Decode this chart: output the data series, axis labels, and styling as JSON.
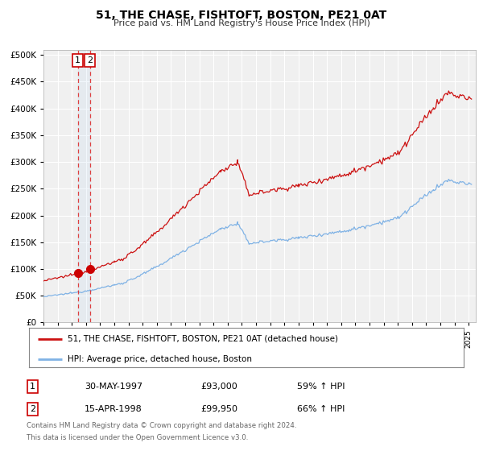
{
  "title": "51, THE CHASE, FISHTOFT, BOSTON, PE21 0AT",
  "subtitle": "Price paid vs. HM Land Registry's House Price Index (HPI)",
  "legend_line1": "51, THE CHASE, FISHTOFT, BOSTON, PE21 0AT (detached house)",
  "legend_line2": "HPI: Average price, detached house, Boston",
  "sale1_date": "30-MAY-1997",
  "sale1_price": "£93,000",
  "sale1_hpi": "59% ↑ HPI",
  "sale2_date": "15-APR-1998",
  "sale2_price": "£99,950",
  "sale2_hpi": "66% ↑ HPI",
  "footnote1": "Contains HM Land Registry data © Crown copyright and database right 2024.",
  "footnote2": "This data is licensed under the Open Government Licence v3.0.",
  "hpi_color": "#7fb2e5",
  "price_color": "#cc1111",
  "marker_color": "#cc0000",
  "vline_color": "#dd2222",
  "sale1_x": 1997.42,
  "sale1_y": 93000,
  "sale2_x": 1998.28,
  "sale2_y": 99950,
  "xmin": 1995.0,
  "xmax": 2025.5,
  "ymin": 0,
  "ymax": 510000,
  "yticks": [
    0,
    50000,
    100000,
    150000,
    200000,
    250000,
    300000,
    350000,
    400000,
    450000,
    500000
  ],
  "plot_bg_color": "#f0f0f0",
  "grid_color": "#ffffff"
}
